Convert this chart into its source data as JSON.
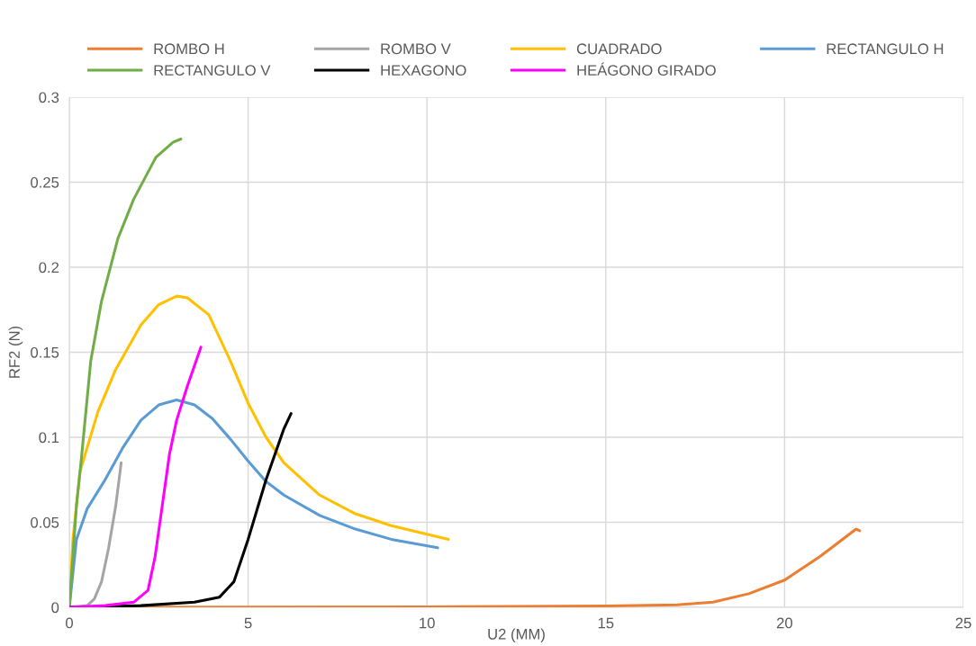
{
  "chart_data": {
    "type": "line",
    "xlabel": "U2 (MM)",
    "ylabel": "RF2 (N)",
    "xlim": [
      0,
      25
    ],
    "ylim": [
      0,
      0.3
    ],
    "xticks": [
      0,
      5,
      10,
      15,
      20,
      25
    ],
    "yticks": [
      0,
      0.05,
      0.1,
      0.15,
      0.2,
      0.25,
      0.3
    ],
    "grid": true,
    "legend": "top",
    "marker": "none",
    "line_style": "solid",
    "series": [
      {
        "name": "ROMBO H",
        "color": "#ed7d31",
        "x": [
          0,
          10,
          15,
          17,
          18,
          19,
          20,
          21,
          22,
          22.1
        ],
        "values": [
          0,
          0.0003,
          0.0008,
          0.0015,
          0.003,
          0.008,
          0.016,
          0.03,
          0.046,
          0.045
        ]
      },
      {
        "name": "ROMBO V",
        "color": "#a5a5a5",
        "x": [
          0,
          0.5,
          0.7,
          0.9,
          1.1,
          1.3,
          1.45
        ],
        "values": [
          0,
          0.001,
          0.005,
          0.015,
          0.035,
          0.06,
          0.085
        ]
      },
      {
        "name": "CUADRADO",
        "color": "#ffc000",
        "x": [
          0,
          0.1,
          0.3,
          0.8,
          1.3,
          2.0,
          2.5,
          3.0,
          3.3,
          3.9,
          4.5,
          5.0,
          5.5,
          6.0,
          7.0,
          8.0,
          9.0,
          10.0,
          10.6
        ],
        "values": [
          0,
          0.04,
          0.08,
          0.115,
          0.14,
          0.166,
          0.178,
          0.183,
          0.182,
          0.172,
          0.145,
          0.12,
          0.1,
          0.085,
          0.066,
          0.055,
          0.048,
          0.043,
          0.04
        ]
      },
      {
        "name": "RECTANGULO H",
        "color": "#5b9bd5",
        "x": [
          0,
          0.2,
          0.5,
          1.0,
          1.5,
          2.0,
          2.5,
          3.0,
          3.5,
          4.0,
          4.5,
          5.0,
          5.5,
          6.0,
          7.0,
          8.0,
          9.0,
          10.3
        ],
        "values": [
          0,
          0.04,
          0.058,
          0.075,
          0.094,
          0.11,
          0.119,
          0.122,
          0.119,
          0.111,
          0.099,
          0.086,
          0.074,
          0.066,
          0.054,
          0.046,
          0.04,
          0.035
        ]
      },
      {
        "name": "RECTANGULO V",
        "color": "#70ad47",
        "x": [
          0,
          0.1,
          0.2,
          0.33,
          0.6,
          0.9,
          1.36,
          1.8,
          2.42,
          2.9,
          3.12
        ],
        "values": [
          0,
          0.03,
          0.06,
          0.086,
          0.145,
          0.18,
          0.217,
          0.24,
          0.2646,
          0.2735,
          0.2754
        ]
      },
      {
        "name": "HEXAGONO",
        "color": "#000000",
        "x": [
          0,
          2,
          3.5,
          4.2,
          4.6,
          5.0,
          5.5,
          6.0,
          6.2
        ],
        "values": [
          0,
          0.001,
          0.003,
          0.006,
          0.015,
          0.04,
          0.075,
          0.105,
          0.114
        ]
      },
      {
        "name": "HEÁGONO GIRADO",
        "color": "#ff00ff",
        "x": [
          0,
          1,
          1.8,
          2.2,
          2.4,
          2.6,
          2.8,
          3.0,
          3.3,
          3.68
        ],
        "values": [
          0,
          0.001,
          0.003,
          0.01,
          0.03,
          0.06,
          0.09,
          0.11,
          0.13,
          0.153
        ]
      }
    ]
  }
}
